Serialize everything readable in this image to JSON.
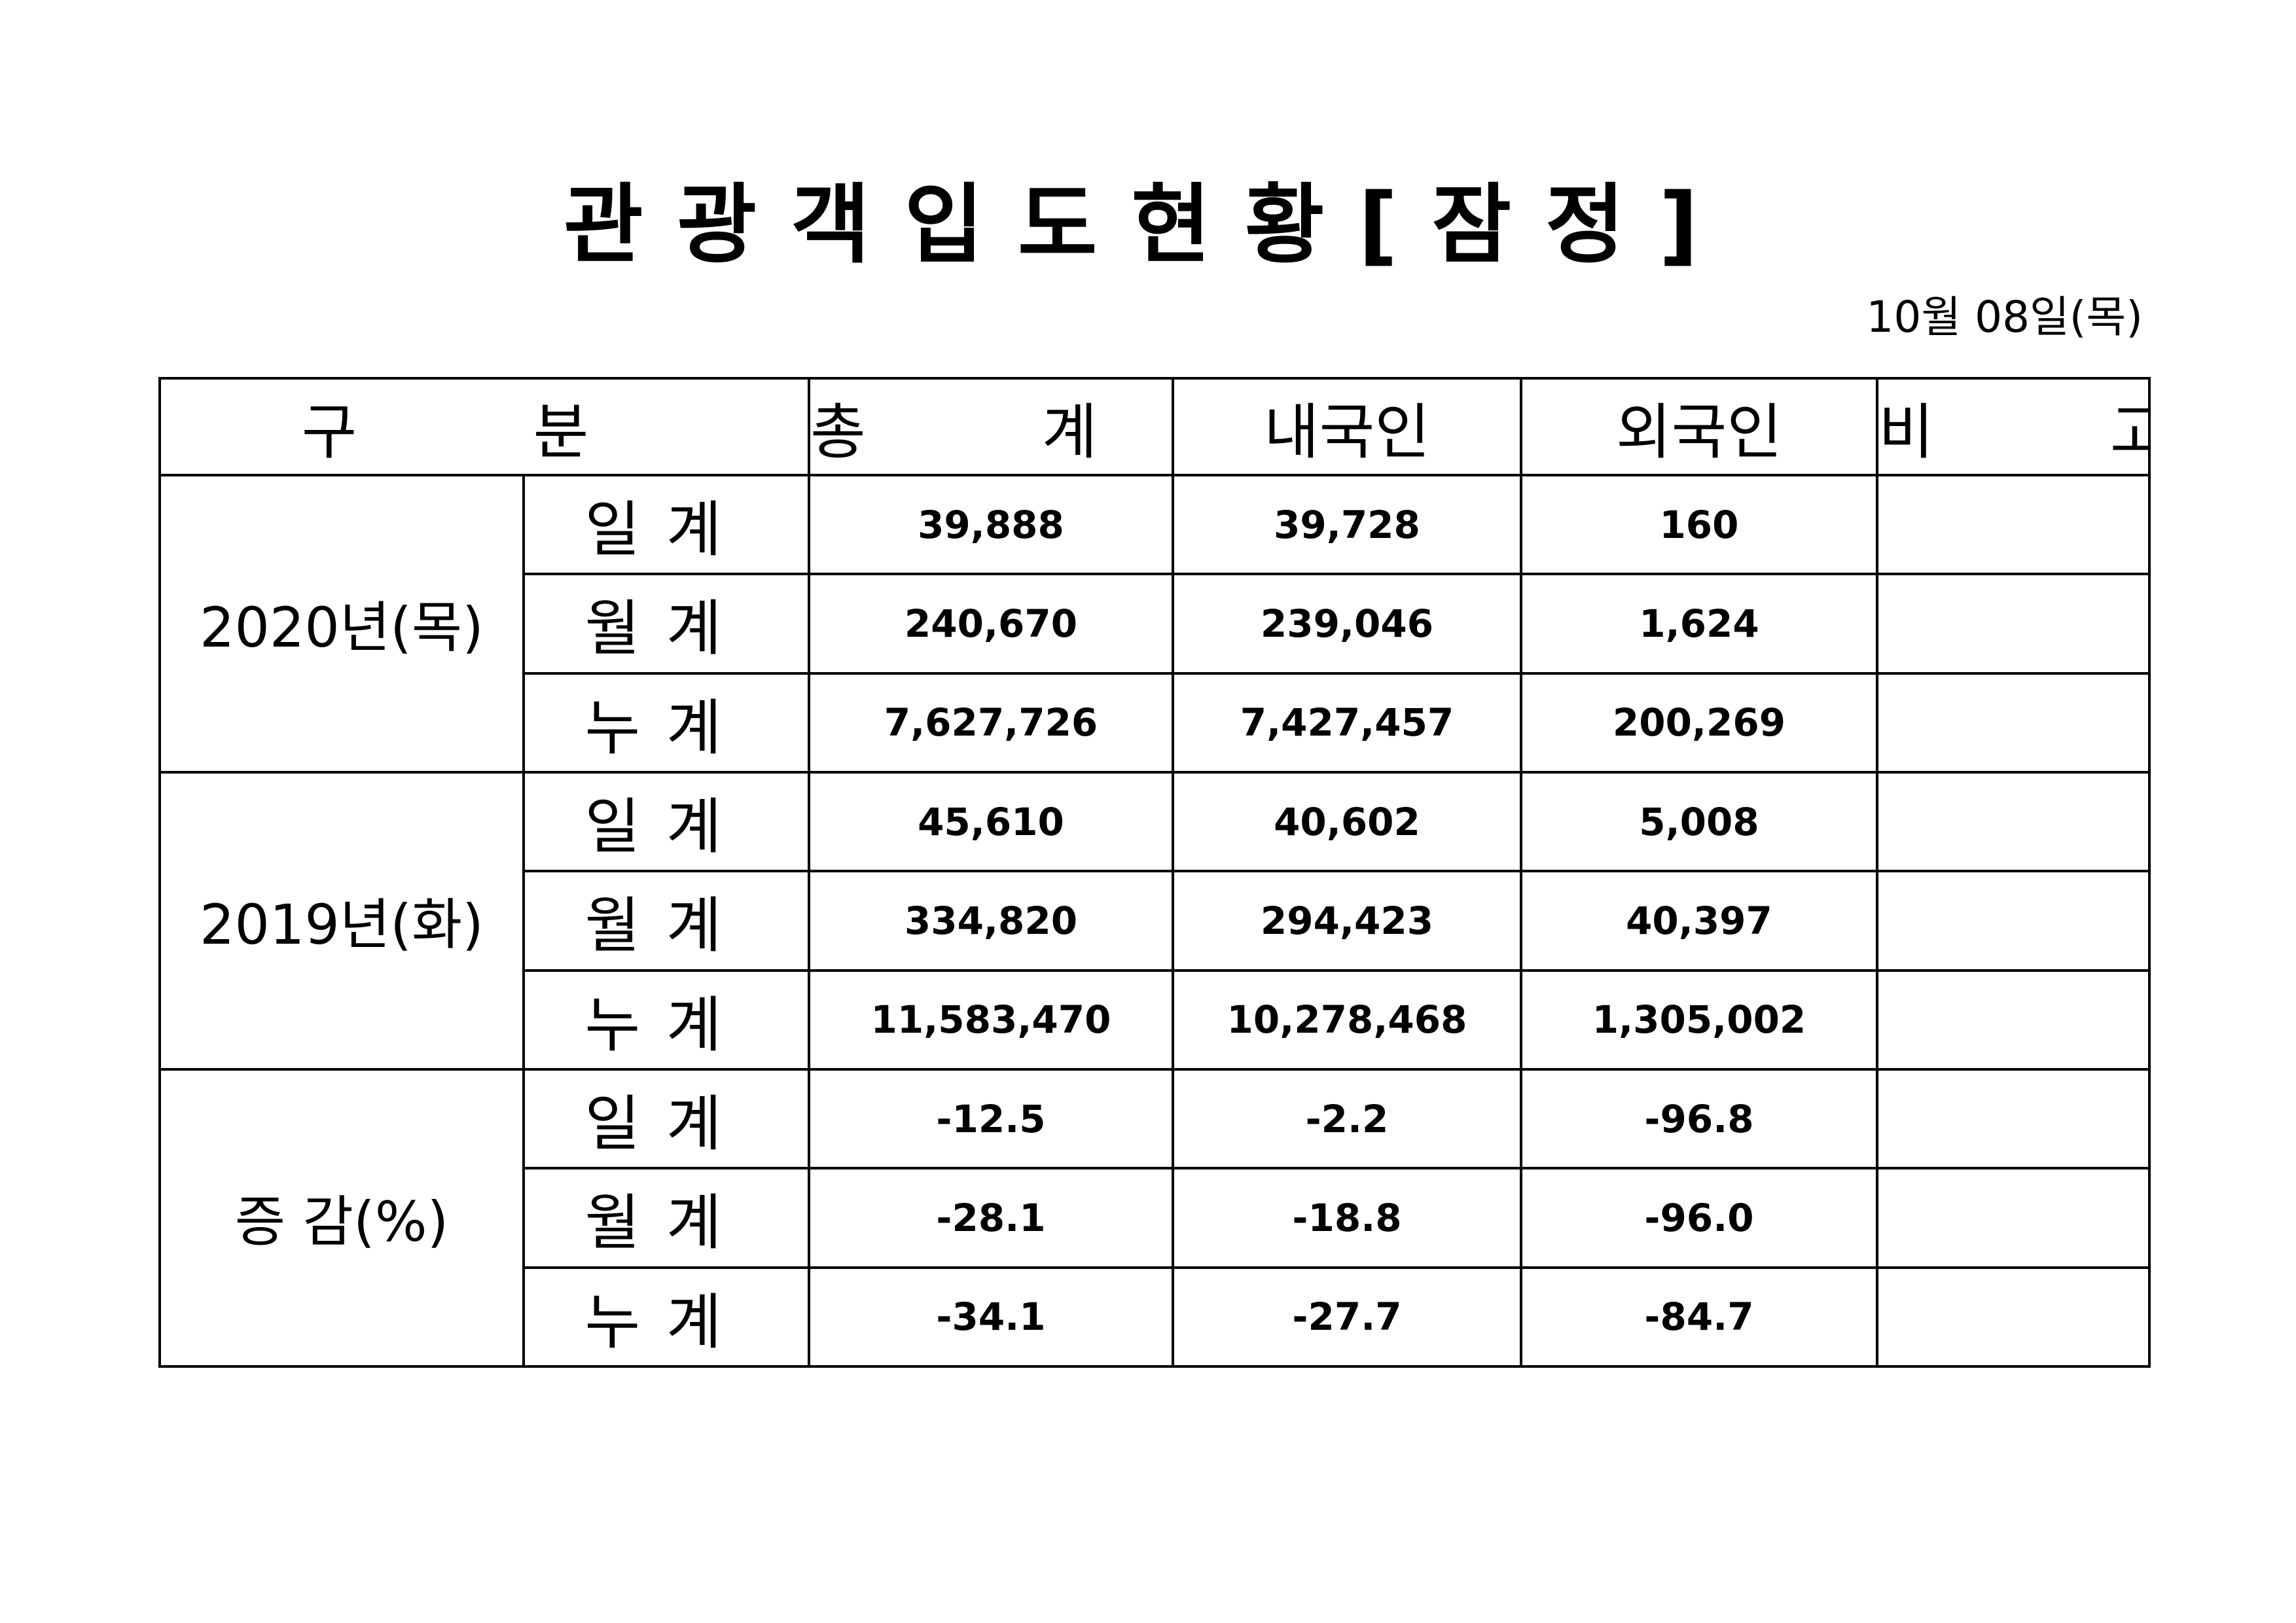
{
  "title": "관광객입도현황[잠정]",
  "date": "10월 08일(목)",
  "headers": {
    "category": "구 분",
    "total": "총 계",
    "domestic": "내국인",
    "foreign": "외국인",
    "remarks": "비 고"
  },
  "groups": [
    {
      "label": "2020년(목)",
      "rows": [
        {
          "sub": "일계",
          "total": "39,888",
          "domestic": "39,728",
          "foreign": "160",
          "remarks": ""
        },
        {
          "sub": "월계",
          "total": "240,670",
          "domestic": "239,046",
          "foreign": "1,624",
          "remarks": ""
        },
        {
          "sub": "누계",
          "total": "7,627,726",
          "domestic": "7,427,457",
          "foreign": "200,269",
          "remarks": ""
        }
      ]
    },
    {
      "label": "2019년(화)",
      "rows": [
        {
          "sub": "일계",
          "total": "45,610",
          "domestic": "40,602",
          "foreign": "5,008",
          "remarks": ""
        },
        {
          "sub": "월계",
          "total": "334,820",
          "domestic": "294,423",
          "foreign": "40,397",
          "remarks": ""
        },
        {
          "sub": "누계",
          "total": "11,583,470",
          "domestic": "10,278,468",
          "foreign": "1,305,002",
          "remarks": ""
        }
      ]
    },
    {
      "label": "증 감(%)",
      "rows": [
        {
          "sub": "일계",
          "total": "-12.5",
          "domestic": "-2.2",
          "foreign": "-96.8",
          "remarks": ""
        },
        {
          "sub": "월계",
          "total": "-28.1",
          "domestic": "-18.8",
          "foreign": "-96.0",
          "remarks": ""
        },
        {
          "sub": "누계",
          "total": "-34.1",
          "domestic": "-27.7",
          "foreign": "-84.7",
          "remarks": ""
        }
      ]
    }
  ]
}
